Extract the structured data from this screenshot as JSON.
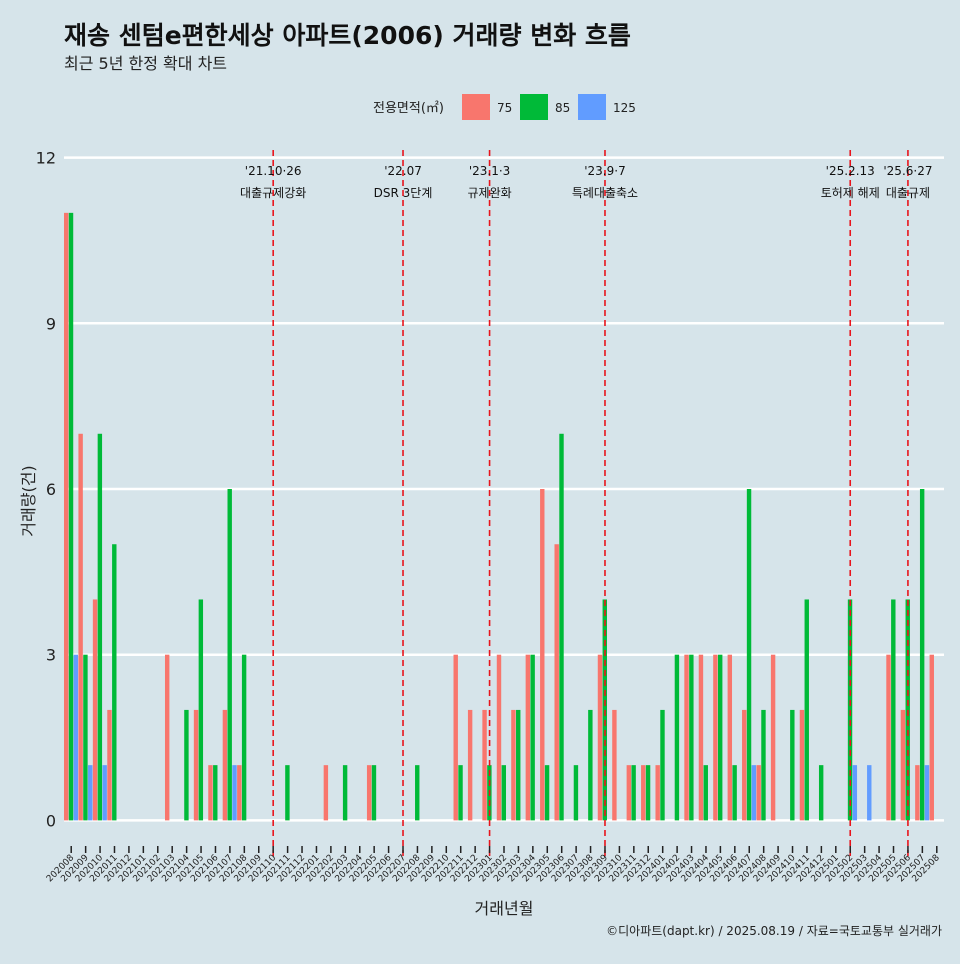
{
  "header": {
    "title": "재송 센텀e편한세상 아파트(2006) 거래량 변화 흐름",
    "subtitle": "최근 5년 한정 확대 차트"
  },
  "legend": {
    "title": "전용면적(㎡)",
    "items": [
      {
        "label": "75",
        "color": "#f8766d"
      },
      {
        "label": "85",
        "color": "#00ba38"
      },
      {
        "label": "125",
        "color": "#619cff"
      }
    ]
  },
  "caption": "©디아파트(dapt.kr) / 2025.08.19 / 자료=국토교통부 실거래가",
  "chart_data": {
    "type": "bar",
    "xlabel": "거래년월",
    "ylabel": "거래량(건)",
    "ylim": [
      -0.5,
      12.5
    ],
    "yticks": [
      0,
      3,
      6,
      9,
      12
    ],
    "grid": "horizontal",
    "legend_position": "top",
    "categories": [
      "202008",
      "202009",
      "202010",
      "202011",
      "202012",
      "202101",
      "202102",
      "202103",
      "202104",
      "202105",
      "202106",
      "202107",
      "202108",
      "202109",
      "202110",
      "202111",
      "202112",
      "202201",
      "202202",
      "202203",
      "202204",
      "202205",
      "202206",
      "202207",
      "202208",
      "202209",
      "202210",
      "202211",
      "202212",
      "202301",
      "202302",
      "202303",
      "202304",
      "202305",
      "202306",
      "202307",
      "202308",
      "202309",
      "202310",
      "202311",
      "202312",
      "202401",
      "202402",
      "202403",
      "202404",
      "202405",
      "202406",
      "202407",
      "202408",
      "202409",
      "202410",
      "202411",
      "202412",
      "202501",
      "202502",
      "202503",
      "202504",
      "202505",
      "202506",
      "202507",
      "202508"
    ],
    "series": [
      {
        "name": "75",
        "color": "#f8766d",
        "values": [
          11,
          7,
          4,
          2,
          0,
          0,
          0,
          3,
          0,
          2,
          1,
          2,
          1,
          0,
          0,
          0,
          0,
          0,
          1,
          0,
          0,
          1,
          0,
          0,
          0,
          0,
          0,
          3,
          2,
          2,
          3,
          2,
          3,
          6,
          5,
          0,
          0,
          3,
          2,
          1,
          1,
          1,
          0,
          3,
          3,
          3,
          3,
          2,
          1,
          3,
          0,
          2,
          0,
          0,
          0,
          0,
          0,
          3,
          2,
          1,
          3
        ]
      },
      {
        "name": "85",
        "color": "#00ba38",
        "values": [
          11,
          3,
          7,
          5,
          0,
          0,
          0,
          0,
          2,
          4,
          1,
          6,
          3,
          0,
          0,
          1,
          0,
          0,
          0,
          1,
          0,
          1,
          0,
          0,
          1,
          0,
          0,
          1,
          0,
          1,
          1,
          2,
          3,
          1,
          7,
          1,
          2,
          4,
          0,
          1,
          1,
          2,
          3,
          3,
          1,
          3,
          1,
          6,
          2,
          0,
          2,
          4,
          1,
          0,
          4,
          0,
          0,
          4,
          4,
          6,
          0
        ]
      },
      {
        "name": "125",
        "color": "#619cff",
        "values": [
          3,
          1,
          1,
          0,
          0,
          0,
          0,
          0,
          0,
          0,
          0,
          1,
          0,
          0,
          0,
          0,
          0,
          0,
          0,
          0,
          0,
          0,
          0,
          0,
          0,
          0,
          0,
          0,
          0,
          0,
          0,
          0,
          0,
          0,
          0,
          0,
          0,
          0,
          0,
          0,
          0,
          0,
          0,
          0,
          0,
          0,
          0,
          1,
          0,
          0,
          0,
          0,
          0,
          0,
          1,
          1,
          0,
          0,
          0,
          1,
          0
        ]
      }
    ],
    "annotations": [
      {
        "x": "202110",
        "date": "'21.10·26",
        "label": "대출규제강화"
      },
      {
        "x": "202207",
        "date": "'22.07",
        "label": "DSR 3단계"
      },
      {
        "x": "202301",
        "date": "'23.1·3",
        "label": "규제완화"
      },
      {
        "x": "202309",
        "date": "'23.9·7",
        "label": "특례대출축소"
      },
      {
        "x": "202502",
        "date": "'25.2.13",
        "label": "토허제 해제"
      },
      {
        "x": "202506",
        "date": "'25.6·27",
        "label": "대출규제"
      }
    ]
  }
}
